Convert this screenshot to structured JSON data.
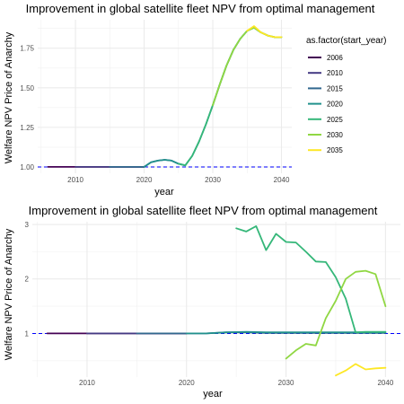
{
  "chart_data": [
    {
      "type": "line",
      "title": "Improvement in global satellite fleet NPV from optimal management",
      "xlabel": "year",
      "ylabel": "Welfare NPV Price of Anarchy",
      "xlim": [
        2004.5,
        2041.5
      ],
      "ylim": [
        0.96,
        1.93
      ],
      "x_ticks": [
        2010,
        2020,
        2030,
        2040
      ],
      "y_ticks": [
        1.0,
        1.25,
        1.5,
        1.75
      ],
      "y_tick_labels": [
        "1.00",
        "1.25",
        "1.50",
        "1.75"
      ],
      "grid": true,
      "reference_line": {
        "y": 1.0,
        "style": "dashed",
        "color": "#0000ff"
      },
      "legend": {
        "title": "as.factor(start_year)",
        "placement": "right",
        "entries": [
          "2006",
          "2010",
          "2015",
          "2020",
          "2025",
          "2030",
          "2035"
        ]
      },
      "series": [
        {
          "name": "2006",
          "color": "#440154",
          "x": [
            2006,
            2008,
            2010,
            2012,
            2014,
            2016,
            2018,
            2020
          ],
          "y": [
            1.0,
            1.0,
            1.0,
            1.0,
            1.0,
            1.0,
            1.0,
            1.0
          ]
        },
        {
          "name": "2010",
          "color": "#443a83",
          "x": [
            2010,
            2012,
            2014,
            2016,
            2018,
            2020
          ],
          "y": [
            1.0,
            1.0,
            1.0,
            1.0,
            1.0,
            1.0
          ]
        },
        {
          "name": "2015",
          "color": "#31688e",
          "x": [
            2015,
            2016,
            2017,
            2018,
            2019,
            2020,
            2021,
            2022,
            2023,
            2024,
            2025,
            2026
          ],
          "y": [
            1.0,
            1.0,
            1.0,
            1.0,
            1.0,
            1.0,
            1.03,
            1.04,
            1.045,
            1.04,
            1.02,
            1.01
          ]
        },
        {
          "name": "2020",
          "color": "#21918c",
          "x": [
            2020,
            2021,
            2022,
            2023,
            2024,
            2025,
            2026,
            2027,
            2028,
            2029,
            2030,
            2031,
            2032,
            2033,
            2034,
            2035,
            2036,
            2037,
            2038,
            2039,
            2040
          ],
          "y": [
            1.0,
            1.03,
            1.04,
            1.045,
            1.04,
            1.02,
            1.01,
            1.07,
            1.16,
            1.27,
            1.39,
            1.52,
            1.64,
            1.74,
            1.81,
            1.86,
            1.88,
            1.85,
            1.83,
            1.82,
            1.82
          ]
        },
        {
          "name": "2025",
          "color": "#35b779",
          "x": [
            2025,
            2026,
            2027,
            2028,
            2029,
            2030,
            2031,
            2032,
            2033,
            2034,
            2035,
            2036,
            2037,
            2038,
            2039,
            2040
          ],
          "y": [
            1.02,
            1.01,
            1.07,
            1.16,
            1.27,
            1.39,
            1.52,
            1.64,
            1.74,
            1.81,
            1.86,
            1.88,
            1.85,
            1.83,
            1.82,
            1.82
          ]
        },
        {
          "name": "2030",
          "color": "#90d743",
          "x": [
            2030,
            2031,
            2032,
            2033,
            2034,
            2035,
            2036,
            2037,
            2038,
            2039,
            2040
          ],
          "y": [
            1.39,
            1.52,
            1.64,
            1.74,
            1.81,
            1.86,
            1.88,
            1.85,
            1.83,
            1.82,
            1.82
          ]
        },
        {
          "name": "2035",
          "color": "#fde725",
          "x": [
            2035,
            2036,
            2037,
            2038,
            2039,
            2040
          ],
          "y": [
            1.86,
            1.89,
            1.85,
            1.83,
            1.82,
            1.82
          ]
        }
      ]
    },
    {
      "type": "line",
      "title": "Improvement in global satellite fleet NPV from optimal management",
      "xlabel": "year",
      "ylabel": "Welfare NPV Price of Anarchy",
      "xlim": [
        2004.5,
        2041.5
      ],
      "ylim": [
        0.2,
        3.05
      ],
      "x_ticks": [
        2010,
        2020,
        2030,
        2040
      ],
      "y_ticks": [
        1,
        2,
        3
      ],
      "y_tick_labels": [
        "1",
        "2",
        "3"
      ],
      "grid": true,
      "reference_line": {
        "y": 1.0,
        "style": "dashed",
        "color": "#0000ff"
      },
      "series": [
        {
          "name": "2006",
          "color": "#440154",
          "x": [
            2006,
            2010,
            2015,
            2020
          ],
          "y": [
            1.0,
            1.0,
            1.0,
            1.0
          ]
        },
        {
          "name": "2010",
          "color": "#443a83",
          "x": [
            2010,
            2015,
            2020
          ],
          "y": [
            1.0,
            1.0,
            1.0
          ]
        },
        {
          "name": "2015",
          "color": "#31688e",
          "x": [
            2015,
            2020,
            2022,
            2024,
            2026,
            2028,
            2030,
            2032,
            2034,
            2036,
            2038,
            2040
          ],
          "y": [
            1.0,
            1.0,
            1.0,
            1.02,
            1.02,
            1.01,
            1.01,
            1.01,
            1.01,
            1.01,
            1.01,
            1.01
          ]
        },
        {
          "name": "2020",
          "color": "#21918c",
          "x": [
            2020,
            2022,
            2024,
            2026,
            2028,
            2030,
            2032,
            2034,
            2036,
            2038,
            2040
          ],
          "y": [
            1.0,
            1.0,
            1.02,
            1.03,
            1.02,
            1.02,
            1.02,
            1.02,
            1.02,
            1.02,
            1.02
          ]
        },
        {
          "name": "2025",
          "color": "#35b779",
          "x": [
            2025,
            2026,
            2027,
            2028,
            2029,
            2030,
            2031,
            2032,
            2033,
            2034,
            2035,
            2036,
            2037,
            2038,
            2039,
            2040
          ],
          "y": [
            2.93,
            2.87,
            2.97,
            2.53,
            2.83,
            2.68,
            2.67,
            2.5,
            2.32,
            2.31,
            2.03,
            1.64,
            1.02,
            1.03,
            1.03,
            1.03
          ]
        },
        {
          "name": "2030",
          "color": "#90d743",
          "x": [
            2030,
            2031,
            2032,
            2033,
            2034,
            2035,
            2036,
            2037,
            2038,
            2039,
            2040
          ],
          "y": [
            0.54,
            0.69,
            0.81,
            0.78,
            1.28,
            1.6,
            2.0,
            2.13,
            2.15,
            2.09,
            1.5
          ]
        },
        {
          "name": "2035",
          "color": "#fde725",
          "x": [
            2035,
            2036,
            2037,
            2038,
            2039,
            2040
          ],
          "y": [
            0.23,
            0.32,
            0.44,
            0.34,
            0.36,
            0.37
          ]
        }
      ]
    }
  ]
}
